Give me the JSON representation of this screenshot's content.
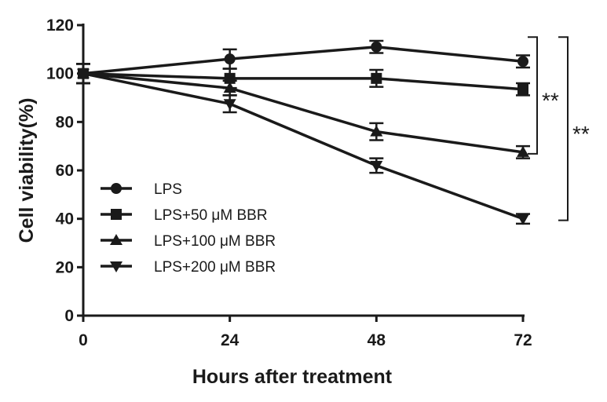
{
  "chart_data": {
    "type": "line",
    "title": "",
    "xlabel": "Hours after treatment",
    "ylabel": "Cell viability(%)",
    "xlim": [
      0,
      72
    ],
    "ylim": [
      0,
      120
    ],
    "x": [
      0,
      24,
      48,
      72
    ],
    "xticks": [
      0,
      24,
      48,
      72
    ],
    "yticks": [
      0,
      20,
      40,
      60,
      80,
      100,
      120
    ],
    "grid": false,
    "legend_position": "lower-left",
    "series": [
      {
        "name": "LPS",
        "marker": "circle",
        "values": [
          100,
          106,
          111,
          105
        ],
        "errors": [
          4,
          4,
          2.5,
          2.5
        ]
      },
      {
        "name": "LPS+50 μM BBR",
        "marker": "square",
        "values": [
          100,
          98,
          98,
          93.5
        ],
        "errors": [
          4,
          4,
          3.5,
          2.5
        ]
      },
      {
        "name": "LPS+100 μM BBR",
        "marker": "triangle-up",
        "values": [
          100,
          94,
          76,
          67.5
        ],
        "errors": [
          4,
          3,
          3.5,
          2.5
        ]
      },
      {
        "name": "LPS+200 μM BBR",
        "marker": "triangle-down",
        "values": [
          100,
          87.5,
          62,
          40
        ],
        "errors": [
          4,
          3.5,
          3,
          2
        ]
      }
    ],
    "annotations": [
      {
        "label": "**",
        "from": 105,
        "to": 67.5
      },
      {
        "label": "**",
        "from": 105,
        "to": 40
      }
    ]
  },
  "colors": {
    "line": "#1a1a1a",
    "background": "#ffffff"
  }
}
